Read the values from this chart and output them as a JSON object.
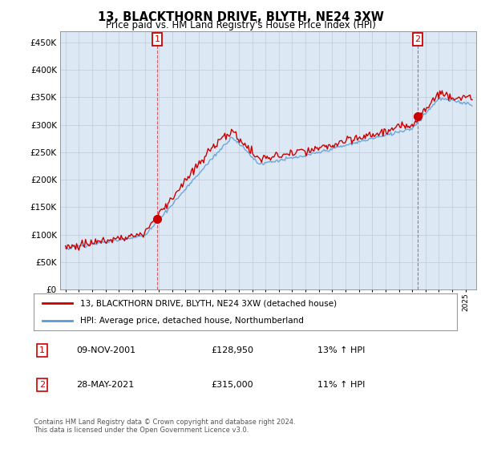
{
  "title": "13, BLACKTHORN DRIVE, BLYTH, NE24 3XW",
  "subtitle": "Price paid vs. HM Land Registry's House Price Index (HPI)",
  "legend_line1": "13, BLACKTHORN DRIVE, BLYTH, NE24 3XW (detached house)",
  "legend_line2": "HPI: Average price, detached house, Northumberland",
  "transaction1_date": "09-NOV-2001",
  "transaction1_price": "£128,950",
  "transaction1_hpi": "13% ↑ HPI",
  "transaction2_date": "28-MAY-2021",
  "transaction2_price": "£315,000",
  "transaction2_hpi": "11% ↑ HPI",
  "footer": "Contains HM Land Registry data © Crown copyright and database right 2024.\nThis data is licensed under the Open Government Licence v3.0.",
  "hpi_color": "#5b9bd5",
  "price_color": "#cc0000",
  "vline_color": "#cc0000",
  "plot_bg_color": "#dce9f5",
  "background_color": "#ffffff",
  "ylim": [
    0,
    470000
  ],
  "yticks": [
    0,
    50000,
    100000,
    150000,
    200000,
    250000,
    300000,
    350000,
    400000,
    450000
  ],
  "xlim_start": 1994.6,
  "xlim_end": 2025.8,
  "t1_x": 2001.875,
  "t1_y": 128950,
  "t2_x": 2021.41,
  "t2_y": 315000
}
